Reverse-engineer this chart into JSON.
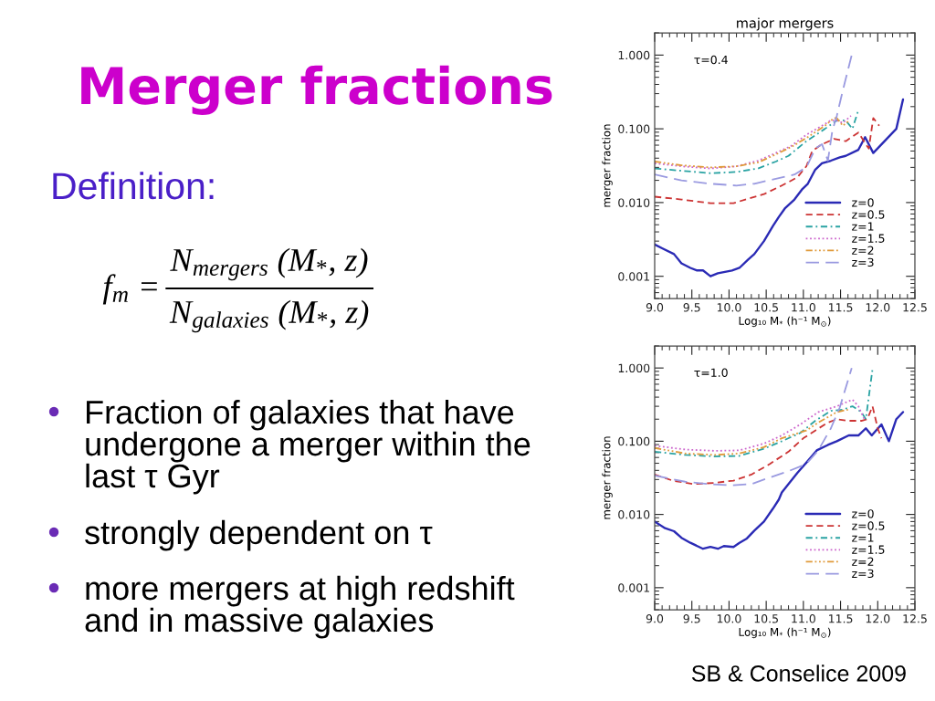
{
  "chart_data": [
    {
      "type": "other",
      "title": "Merger fractions",
      "annotations": [
        "Definition:",
        "f$_{m}$ =",
        "N$_{mergers}$ (M$_{*}$, z)",
        "N$_{galaxies}$ (M$_{*}$, z)",
        "Fraction of galaxies that have\nundergone a merger within the\nlast τ Gyr",
        "strongly dependent on τ",
        "more mergers at high redshift\nand in massive galaxies"
      ]
    },
    {
      "type": "line",
      "title": "major mergers",
      "xlabel": "Log₁₀ M$_{*}$ (h⁻¹ M$_{⊙}$)",
      "ylabel": "merger fraction",
      "annotations": [
        "τ=0.4"
      ],
      "log": "y",
      "legend": "bottom right",
      "xlim": [
        9,
        12.5
      ],
      "ylim": [
        0.0005,
        2
      ],
      "xticks": [
        {
          "value": 9,
          "label": "9.0"
        },
        9.5,
        {
          "value": 10,
          "label": "10.0"
        },
        10.5,
        {
          "value": 11,
          "label": "11.0"
        },
        11.5,
        {
          "value": 12,
          "label": "12.0"
        },
        12.5
      ],
      "yticks": [
        {
          "value": 0.001,
          "label": "0.001"
        },
        {
          "value": 0.01,
          "label": "0.010"
        },
        {
          "value": 0.1,
          "label": "0.100"
        },
        {
          "value": 1,
          "label": "1.000"
        }
      ],
      "series": [
        {
          "name": "z=0",
          "color": "#2a2ab5",
          "line_style": "solid",
          "x": [
            9.0,
            9.1,
            9.26,
            9.36,
            9.48,
            9.57,
            9.65,
            9.75,
            9.85,
            10.04,
            10.14,
            10.26,
            10.34,
            10.47,
            10.59,
            10.67,
            10.75,
            10.88,
            10.98,
            11.06,
            11.16,
            11.25,
            11.37,
            11.49,
            11.57,
            11.74,
            11.83,
            11.94,
            12.25,
            12.34
          ],
          "values": [
            0.0027,
            0.0024,
            0.002,
            0.0015,
            0.0013,
            0.0012,
            0.0012,
            0.001,
            0.0011,
            0.0012,
            0.0013,
            0.0017,
            0.002,
            0.003,
            0.0048,
            0.0064,
            0.0083,
            0.011,
            0.015,
            0.018,
            0.028,
            0.034,
            0.037,
            0.041,
            0.043,
            0.052,
            0.077,
            0.047,
            0.1,
            0.25
          ]
        },
        {
          "name": "z=0.5",
          "color": "#cc3333",
          "line_style": "dashed",
          "x": [
            9.0,
            9.36,
            9.75,
            10.06,
            10.22,
            10.47,
            10.71,
            10.92,
            11.04,
            11.12,
            11.23,
            11.41,
            11.57,
            11.74,
            11.83,
            11.88,
            11.94,
            12.02
          ],
          "values": [
            0.012,
            0.011,
            0.0098,
            0.0098,
            0.011,
            0.013,
            0.017,
            0.022,
            0.031,
            0.05,
            0.06,
            0.073,
            0.068,
            0.089,
            0.064,
            0.054,
            0.14,
            0.11
          ]
        },
        {
          "name": "z=1",
          "color": "#2aa3a3",
          "line_style": "dashdot",
          "x": [
            9.0,
            9.36,
            9.75,
            10.1,
            10.39,
            10.63,
            10.8,
            11.04,
            11.29,
            11.45,
            11.57,
            11.66,
            11.74
          ],
          "values": [
            0.029,
            0.027,
            0.025,
            0.026,
            0.029,
            0.036,
            0.043,
            0.068,
            0.1,
            0.13,
            0.13,
            0.1,
            0.18
          ]
        },
        {
          "name": "z=1.5",
          "color": "#cc66cc",
          "line_style": "dotted",
          "x": [
            9.0,
            9.36,
            9.75,
            10.1,
            10.39,
            10.63,
            10.84,
            11.04,
            11.25,
            11.37,
            11.45,
            11.53,
            11.64
          ],
          "values": [
            0.034,
            0.031,
            0.029,
            0.031,
            0.037,
            0.047,
            0.059,
            0.083,
            0.11,
            0.13,
            0.13,
            0.12,
            0.15
          ]
        },
        {
          "name": "z=2",
          "color": "#e09a3a",
          "line_style": "dashdotdot",
          "x": [
            9.0,
            9.36,
            9.75,
            10.1,
            10.39,
            10.63,
            10.84,
            11.04,
            11.29,
            11.41,
            11.45,
            11.53,
            11.62
          ],
          "values": [
            0.036,
            0.032,
            0.03,
            0.031,
            0.035,
            0.045,
            0.057,
            0.075,
            0.11,
            0.14,
            0.14,
            0.11,
            0.13
          ]
        },
        {
          "name": "z=3",
          "color": "#9a9ae0",
          "line_style": "longdashed",
          "x": [
            9.0,
            9.36,
            9.75,
            10.1,
            10.34,
            10.63,
            10.88,
            11.04,
            11.16,
            11.25,
            11.33,
            11.39,
            11.45,
            11.53,
            11.65
          ],
          "values": [
            0.024,
            0.02,
            0.018,
            0.017,
            0.018,
            0.021,
            0.024,
            0.03,
            0.054,
            0.062,
            0.037,
            0.095,
            0.15,
            0.33,
            1.0
          ]
        }
      ]
    },
    {
      "type": "line",
      "xlabel": "Log₁₀ M$_{*}$ (h⁻¹ M$_{⊙}$)",
      "ylabel": "merger fraction",
      "annotations": [
        "τ=1.0",
        "SB & Conselice 2009"
      ],
      "log": "y",
      "legend": "bottom right",
      "xlim": [
        9,
        12.5
      ],
      "ylim": [
        0.0005,
        2
      ],
      "xticks": [
        {
          "value": 9,
          "label": "9.0"
        },
        9.5,
        {
          "value": 10,
          "label": "10.0"
        },
        10.5,
        {
          "value": 11,
          "label": "11.0"
        },
        11.5,
        {
          "value": 12,
          "label": "12.0"
        },
        12.5
      ],
      "yticks": [
        {
          "value": 0.001,
          "label": "0.001"
        },
        {
          "value": 0.01,
          "label": "0.010"
        },
        {
          "value": 0.1,
          "label": "0.100"
        },
        {
          "value": 1,
          "label": "1.000"
        }
      ],
      "series": [
        {
          "name": "z=0",
          "color": "#2a2ab5",
          "line_style": "solid",
          "x": [
            9.0,
            9.14,
            9.26,
            9.36,
            9.48,
            9.65,
            9.75,
            9.85,
            9.93,
            10.06,
            10.14,
            10.24,
            10.34,
            10.47,
            10.59,
            10.67,
            10.71,
            10.8,
            10.92,
            11.04,
            11.18,
            11.33,
            11.45,
            11.61,
            11.74,
            11.84,
            11.92,
            12.05,
            12.15,
            12.25,
            12.34
          ],
          "values": [
            0.008,
            0.0065,
            0.0059,
            0.0048,
            0.0041,
            0.0034,
            0.0036,
            0.0034,
            0.0037,
            0.0036,
            0.0041,
            0.0047,
            0.006,
            0.008,
            0.012,
            0.016,
            0.02,
            0.026,
            0.037,
            0.051,
            0.075,
            0.089,
            0.1,
            0.12,
            0.12,
            0.15,
            0.12,
            0.17,
            0.1,
            0.2,
            0.25
          ]
        },
        {
          "name": "z=0.5",
          "color": "#cc3333",
          "line_style": "dashed",
          "x": [
            9.0,
            9.24,
            9.52,
            9.81,
            10.06,
            10.3,
            10.55,
            10.8,
            11.0,
            11.16,
            11.33,
            11.45,
            11.61,
            11.78,
            11.86,
            11.93,
            12.0,
            12.05
          ],
          "values": [
            0.035,
            0.029,
            0.026,
            0.027,
            0.029,
            0.035,
            0.049,
            0.072,
            0.11,
            0.14,
            0.18,
            0.2,
            0.19,
            0.19,
            0.2,
            0.3,
            0.15,
            0.11
          ]
        },
        {
          "name": "z=1",
          "color": "#2aa3a3",
          "line_style": "dashdot",
          "x": [
            9.0,
            9.41,
            9.81,
            10.14,
            10.47,
            10.71,
            10.96,
            11.16,
            11.37,
            11.53,
            11.66,
            11.78,
            11.84,
            11.93
          ],
          "values": [
            0.072,
            0.065,
            0.062,
            0.063,
            0.079,
            0.1,
            0.13,
            0.19,
            0.26,
            0.27,
            0.3,
            0.25,
            0.2,
            0.97
          ]
        },
        {
          "name": "z=1.5",
          "color": "#cc66cc",
          "line_style": "dotted",
          "x": [
            9.0,
            9.41,
            9.81,
            10.14,
            10.47,
            10.71,
            10.96,
            11.2,
            11.45,
            11.66,
            11.74,
            11.82
          ],
          "values": [
            0.087,
            0.077,
            0.074,
            0.075,
            0.093,
            0.12,
            0.17,
            0.25,
            0.3,
            0.37,
            0.3,
            0.2
          ]
        },
        {
          "name": "z=2",
          "color": "#e09a3a",
          "line_style": "dashdotdot",
          "x": [
            9.0,
            9.41,
            9.81,
            10.14,
            10.47,
            10.71,
            11.04,
            11.2,
            11.45,
            11.6
          ],
          "values": [
            0.081,
            0.068,
            0.065,
            0.068,
            0.083,
            0.11,
            0.14,
            0.18,
            0.25,
            0.27
          ]
        },
        {
          "name": "z=3",
          "color": "#9a9ae0",
          "line_style": "longdashed",
          "x": [
            9.0,
            9.41,
            9.73,
            10.02,
            10.3,
            10.55,
            10.8,
            11.04,
            11.2,
            11.37,
            11.49,
            11.65
          ],
          "values": [
            0.034,
            0.028,
            0.026,
            0.025,
            0.026,
            0.032,
            0.039,
            0.049,
            0.075,
            0.15,
            0.29,
            1.0
          ]
        }
      ]
    }
  ]
}
